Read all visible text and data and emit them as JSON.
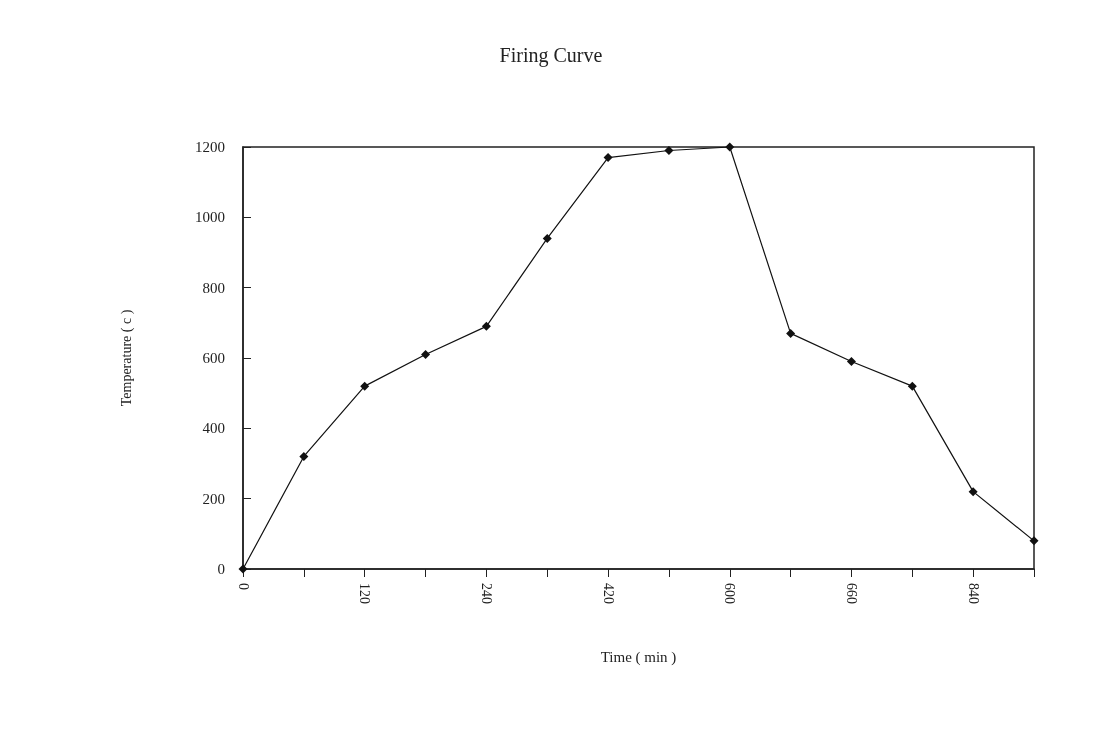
{
  "chart_data": {
    "type": "line",
    "title": "Firing Curve",
    "xlabel": "Time ( min )",
    "ylabel": "Temperature ( c )",
    "categories": [
      "0",
      null,
      "120",
      null,
      "240",
      null,
      "420",
      null,
      "600",
      null,
      "660",
      null,
      "840",
      null
    ],
    "series": [
      {
        "color": "#111111",
        "values": [
          0,
          320,
          520,
          610,
          690,
          940,
          1170,
          1190,
          1200,
          670,
          590,
          520,
          220,
          80
        ]
      }
    ],
    "ylim": [
      0,
      1200
    ],
    "yticks": [
      0,
      200,
      400,
      600,
      800,
      1000,
      1200
    ],
    "grid": false,
    "marker": "diamond",
    "line_style": "solid"
  }
}
